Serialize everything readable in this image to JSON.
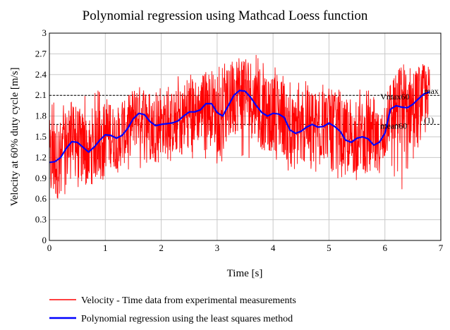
{
  "chart_data": {
    "type": "line",
    "title": "Polynomial regression using Mathcad Loess function",
    "xlabel": "Time [s]",
    "ylabel": "Velocity at 60% duty cycle [m/s]",
    "xlim": [
      0,
      7
    ],
    "ylim": [
      0,
      3
    ],
    "x_ticks": [
      "0",
      "1",
      "2",
      "3",
      "4",
      "5",
      "6",
      "7"
    ],
    "y_ticks": [
      "0",
      "0.3",
      "0.6",
      "0.9",
      "1.2",
      "1.5",
      "1.8",
      "2.1",
      "2.4",
      "2.7",
      "3"
    ],
    "grid": true,
    "legend_position": "bottom",
    "reference_lines": [
      {
        "label": "Vmax60",
        "suffix": "max",
        "y": 2.1
      },
      {
        "label": "mean60",
        "suffix": "(1)",
        "y": 1.68
      }
    ],
    "series": [
      {
        "name": "Velocity - Time data from experimental measurements",
        "color": "#ff0000",
        "envelope_x": [
          0,
          0.3,
          0.6,
          0.9,
          1.2,
          1.5,
          1.8,
          2.1,
          2.4,
          2.7,
          3.0,
          3.3,
          3.6,
          3.9,
          4.2,
          4.5,
          4.8,
          5.1,
          5.4,
          5.7,
          6.0,
          6.3,
          6.6,
          6.8
        ],
        "envelope_low": [
          0.45,
          0.6,
          0.7,
          0.85,
          0.95,
          0.95,
          1.1,
          1.15,
          1.1,
          1.2,
          1.1,
          1.1,
          1.2,
          1.15,
          0.95,
          1.05,
          0.95,
          0.9,
          0.9,
          0.8,
          1.0,
          0.7,
          1.3,
          1.55
        ],
        "envelope_high": [
          2.1,
          2.0,
          2.1,
          2.2,
          2.15,
          2.2,
          2.25,
          2.35,
          2.4,
          2.45,
          2.5,
          2.65,
          2.75,
          2.55,
          2.45,
          2.35,
          2.3,
          2.25,
          2.2,
          2.2,
          2.1,
          2.55,
          2.65,
          2.55
        ]
      },
      {
        "name": "Polynomial regression using the least squares method",
        "color": "#0000ff",
        "x": [
          0,
          0.1,
          0.2,
          0.3,
          0.4,
          0.5,
          0.6,
          0.7,
          0.8,
          0.9,
          1.0,
          1.1,
          1.2,
          1.3,
          1.4,
          1.5,
          1.6,
          1.7,
          1.8,
          1.9,
          2.0,
          2.1,
          2.2,
          2.3,
          2.4,
          2.5,
          2.6,
          2.7,
          2.8,
          2.9,
          3.0,
          3.1,
          3.2,
          3.3,
          3.4,
          3.5,
          3.6,
          3.7,
          3.8,
          3.9,
          4.0,
          4.1,
          4.2,
          4.3,
          4.4,
          4.5,
          4.6,
          4.7,
          4.8,
          4.9,
          5.0,
          5.1,
          5.2,
          5.3,
          5.4,
          5.5,
          5.6,
          5.7,
          5.8,
          5.9,
          6.0,
          6.1,
          6.2,
          6.3,
          6.4,
          6.5,
          6.6,
          6.7,
          6.8
        ],
        "y": [
          1.13,
          1.14,
          1.2,
          1.33,
          1.43,
          1.42,
          1.35,
          1.28,
          1.35,
          1.45,
          1.53,
          1.52,
          1.48,
          1.52,
          1.62,
          1.76,
          1.84,
          1.82,
          1.72,
          1.66,
          1.68,
          1.69,
          1.7,
          1.73,
          1.8,
          1.86,
          1.86,
          1.89,
          1.98,
          1.98,
          1.85,
          1.8,
          1.95,
          2.1,
          2.17,
          2.16,
          2.07,
          1.95,
          1.85,
          1.8,
          1.84,
          1.83,
          1.78,
          1.6,
          1.55,
          1.58,
          1.64,
          1.68,
          1.64,
          1.65,
          1.7,
          1.65,
          1.58,
          1.45,
          1.42,
          1.48,
          1.5,
          1.47,
          1.38,
          1.42,
          1.55,
          1.9,
          1.95,
          1.93,
          1.92,
          1.97,
          2.05,
          2.12,
          2.15
        ]
      }
    ]
  }
}
